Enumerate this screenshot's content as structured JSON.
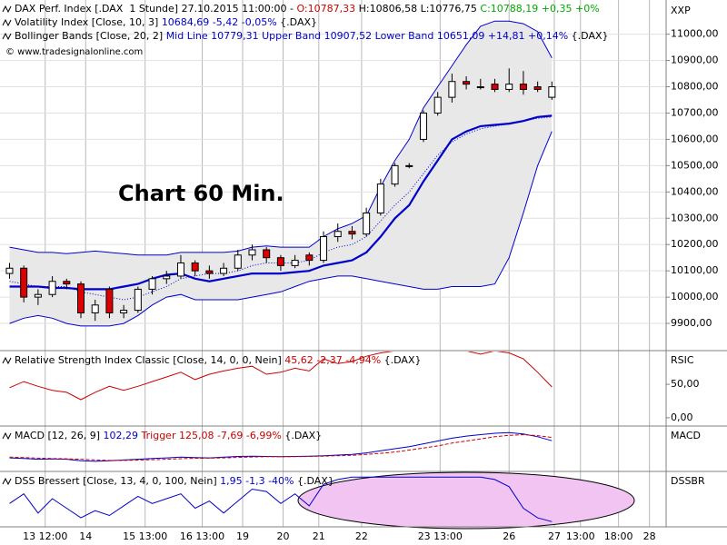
{
  "chart_data": [
    {
      "type": "candlestick",
      "legend_lines": [
        [
          {
            "text": "DAX Perf. Index [.DAX  1 Stunde] 27.10.2015 11:00:00 - ",
            "color": "#000000"
          },
          {
            "text": "O:10787,33",
            "color": "#cc0000"
          },
          {
            "text": " H:10806,58 L:10776,75 ",
            "color": "#000000"
          },
          {
            "text": "C:10788,19 +0,35 +0%",
            "color": "#00aa00"
          }
        ],
        [
          {
            "text": "Volatility Index [Close, 10, 3] ",
            "color": "#000000"
          },
          {
            "text": "10684,69 -5,42 -0,05%",
            "color": "#0000cc"
          },
          {
            "text": " {.DAX}",
            "color": "#000000"
          }
        ],
        [
          {
            "text": "Bollinger Bands [Close, 20, 2] ",
            "color": "#000000"
          },
          {
            "text": "Mid Line 10779,31 Upper Band 10907,52 Lower Band 10651,09 +14,81 +0,14%",
            "color": "#0000cc"
          },
          {
            "text": " {.DAX}",
            "color": "#000000"
          }
        ]
      ],
      "copyright": "© www.tradesignalonline.com",
      "annotation": "Chart 60 Min.",
      "axis_label": "XXP",
      "x": [
        2,
        5,
        8,
        11,
        14,
        17,
        20,
        23,
        26,
        29,
        32,
        35,
        38,
        41,
        44,
        47,
        50,
        53,
        56,
        59,
        62,
        65,
        68,
        71,
        74,
        77,
        80,
        83,
        86,
        89,
        92,
        95,
        98,
        101,
        104,
        107,
        110,
        113,
        116
      ],
      "xlim": [
        0,
        140
      ],
      "xticks": [
        {
          "value": 9.5,
          "label": "13 12:00"
        },
        {
          "value": 18,
          "label": "14"
        },
        {
          "value": 30.5,
          "label": "15 13:00"
        },
        {
          "value": 42.5,
          "label": "16 13:00"
        },
        {
          "value": 51,
          "label": "19"
        },
        {
          "value": 59.5,
          "label": "20"
        },
        {
          "value": 67,
          "label": "21"
        },
        {
          "value": 76,
          "label": "22"
        },
        {
          "value": 92.5,
          "label": "23 13:00"
        },
        {
          "value": 107,
          "label": "26"
        },
        {
          "value": 116.5,
          "label": "27"
        },
        {
          "value": 122,
          "label": "13:00"
        },
        {
          "value": 130,
          "label": "18:00"
        },
        {
          "value": 136.5,
          "label": "28"
        }
      ],
      "ylim": [
        9800,
        11130
      ],
      "yticks": [
        {
          "value": 9900,
          "label": "9900,00"
        },
        {
          "value": 10000,
          "label": "10000,00"
        },
        {
          "value": 10100,
          "label": "10100,00"
        },
        {
          "value": 10200,
          "label": "10200,00"
        },
        {
          "value": 10300,
          "label": "10300,00"
        },
        {
          "value": 10400,
          "label": "10400,00"
        },
        {
          "value": 10500,
          "label": "10500,00"
        },
        {
          "value": 10600,
          "label": "10600,00"
        },
        {
          "value": 10700,
          "label": "10700,00"
        },
        {
          "value": 10800,
          "label": "10800,00"
        },
        {
          "value": 10900,
          "label": "10900,00"
        },
        {
          "value": 11000,
          "label": "11000,00"
        }
      ],
      "grid": true,
      "up_color": "#ffffff",
      "down_color": "#dd0000",
      "open": [
        10090,
        10110,
        10000,
        10010,
        10060,
        10050,
        9940,
        10030,
        9940,
        9950,
        10030,
        10070,
        10080,
        10130,
        10100,
        10090,
        10110,
        10160,
        10180,
        10150,
        10120,
        10160,
        10140,
        10230,
        10250,
        10240,
        10320,
        10430,
        10500,
        10600,
        10700,
        10760,
        10820,
        10800,
        10810,
        10790,
        10810,
        10800,
        10760
      ],
      "high": [
        10130,
        10120,
        10030,
        10080,
        10070,
        10060,
        9990,
        10040,
        9970,
        10040,
        10080,
        10100,
        10160,
        10140,
        10120,
        10130,
        10180,
        10200,
        10190,
        10160,
        10160,
        10170,
        10250,
        10280,
        10270,
        10340,
        10450,
        10510,
        10510,
        10710,
        10780,
        10850,
        10840,
        10830,
        10830,
        10870,
        10860,
        10820,
        10820
      ],
      "low": [
        10070,
        9980,
        9970,
        10000,
        10030,
        9920,
        9910,
        9920,
        9920,
        9940,
        10010,
        10050,
        10070,
        10080,
        10070,
        10080,
        10100,
        10140,
        10130,
        10100,
        10110,
        10120,
        10130,
        10210,
        10220,
        10230,
        10310,
        10420,
        10490,
        10590,
        10690,
        10740,
        10790,
        10790,
        10780,
        10780,
        10770,
        10780,
        10750
      ],
      "close": [
        10110,
        10000,
        10010,
        10060,
        10050,
        9940,
        9970,
        9940,
        9950,
        10030,
        10070,
        10080,
        10130,
        10100,
        10090,
        10110,
        10160,
        10180,
        10150,
        10120,
        10140,
        10140,
        10230,
        10250,
        10240,
        10320,
        10430,
        10500,
        10500,
        10700,
        10760,
        10820,
        10810,
        10800,
        10790,
        10810,
        10790,
        10790,
        10800
      ],
      "bollinger": {
        "color": "#0000cc",
        "fill": "#e8e8e8",
        "upper": [
          10190,
          10180,
          10170,
          10170,
          10165,
          10170,
          10175,
          10170,
          10165,
          10160,
          10160,
          10160,
          10170,
          10170,
          10170,
          10170,
          10175,
          10190,
          10195,
          10190,
          10190,
          10190,
          10230,
          10260,
          10280,
          10310,
          10420,
          10520,
          10600,
          10720,
          10800,
          10880,
          10960,
          11030,
          11050,
          11050,
          11040,
          11010,
          10910
        ],
        "mid": [
          10040,
          10040,
          10040,
          10035,
          10035,
          10030,
          10030,
          10030,
          10040,
          10050,
          10070,
          10085,
          10090,
          10070,
          10060,
          10070,
          10080,
          10090,
          10090,
          10090,
          10095,
          10100,
          10120,
          10130,
          10140,
          10170,
          10230,
          10300,
          10350,
          10440,
          10520,
          10600,
          10630,
          10650,
          10655,
          10660,
          10670,
          10685,
          10690
        ],
        "lower": [
          9900,
          9920,
          9930,
          9920,
          9900,
          9890,
          9890,
          9890,
          9900,
          9930,
          9970,
          10000,
          10010,
          9990,
          9990,
          9990,
          9990,
          10000,
          10010,
          10020,
          10040,
          10060,
          10070,
          10080,
          10080,
          10070,
          10060,
          10050,
          10040,
          10030,
          10030,
          10040,
          10040,
          10040,
          10050,
          10150,
          10320,
          10500,
          10630
        ]
      },
      "volatility": {
        "color": "#0000cc",
        "values": [
          10060,
          10050,
          10040,
          10040,
          10040,
          10020,
          10010,
          10000,
          9990,
          10000,
          10020,
          10040,
          10070,
          10080,
          10090,
          10090,
          10100,
          10120,
          10130,
          10130,
          10130,
          10140,
          10170,
          10190,
          10200,
          10230,
          10290,
          10350,
          10400,
          10470,
          10540,
          10590,
          10620,
          10640,
          10650,
          10660,
          10670,
          10680,
          10685
        ]
      }
    },
    {
      "type": "line",
      "legend_lines": [
        [
          {
            "text": "Relative Strength Index Classic [Close, 14, 0, 0, Nein] ",
            "color": "#000000"
          },
          {
            "text": "45,62 -2,37 -4,94%",
            "color": "#cc0000"
          },
          {
            "text": " {.DAX}",
            "color": "#000000"
          }
        ]
      ],
      "axis_label": "RSIC",
      "ylim": [
        -11,
        99
      ],
      "yticks": [
        {
          "value": 0,
          "label": "0,00"
        },
        {
          "value": 50,
          "label": "50,00"
        }
      ],
      "series": [
        {
          "color": "#cc0000",
          "dash": false,
          "values": [
            45,
            54,
            47,
            41,
            38,
            27,
            38,
            47,
            41,
            47,
            54,
            61,
            68,
            57,
            65,
            70,
            74,
            77,
            65,
            68,
            74,
            70,
            88,
            81,
            84,
            92,
            97,
            100,
            100,
            100,
            100,
            100,
            100,
            95,
            100,
            97,
            88,
            68,
            46
          ]
        }
      ]
    },
    {
      "type": "line",
      "legend_lines": [
        [
          {
            "text": "MACD [12, 26, 9] ",
            "color": "#000000"
          },
          {
            "text": "102,29",
            "color": "#0000cc"
          },
          {
            "text": " Trigger 125,08 -7,69 -6,99%",
            "color": "#cc0000"
          },
          {
            "text": " {.DAX}",
            "color": "#000000"
          }
        ]
      ],
      "axis_label": "MACD",
      "ylim": [
        -110,
        200
      ],
      "yticks": [],
      "series": [
        {
          "color": "#0000cc",
          "dash": false,
          "values": [
            -20,
            -25,
            -30,
            -28,
            -30,
            -40,
            -45,
            -40,
            -35,
            -30,
            -25,
            -20,
            -15,
            -18,
            -20,
            -15,
            -10,
            -8,
            -10,
            -12,
            -10,
            -8,
            -5,
            0,
            5,
            15,
            30,
            45,
            60,
            80,
            100,
            120,
            135,
            145,
            155,
            160,
            150,
            130,
            102
          ]
        },
        {
          "color": "#cc0000",
          "dash": true,
          "values": [
            -15,
            -18,
            -22,
            -25,
            -27,
            -30,
            -35,
            -38,
            -38,
            -36,
            -33,
            -30,
            -26,
            -23,
            -22,
            -20,
            -17,
            -14,
            -12,
            -12,
            -11,
            -10,
            -8,
            -5,
            -2,
            5,
            12,
            22,
            35,
            50,
            65,
            85,
            100,
            115,
            130,
            140,
            145,
            138,
            125
          ]
        }
      ]
    },
    {
      "type": "line",
      "legend_lines": [
        [
          {
            "text": "DSS Bressert [Close, 13, 4, 0, 100, Nein] ",
            "color": "#000000"
          },
          {
            "text": "1,95 -1,3 -40%",
            "color": "#0000cc"
          },
          {
            "text": " {.DAX}",
            "color": "#000000"
          }
        ]
      ],
      "axis_label": "DSSBR",
      "ylim": [
        -5,
        105
      ],
      "yticks": [],
      "series": [
        {
          "color": "#0000cc",
          "dash": false,
          "values": [
            40,
            60,
            20,
            50,
            30,
            10,
            25,
            15,
            35,
            55,
            40,
            50,
            60,
            30,
            45,
            20,
            45,
            70,
            65,
            40,
            60,
            35,
            80,
            90,
            95,
            95,
            95,
            95,
            95,
            95,
            95,
            95,
            95,
            95,
            90,
            75,
            30,
            10,
            2
          ]
        }
      ]
    }
  ]
}
